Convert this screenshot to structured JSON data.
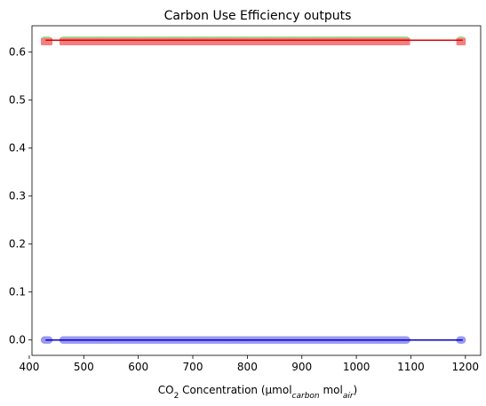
{
  "chart_data": {
    "type": "scatter",
    "title": "Carbon Use Efficiency outputs",
    "xlabel": {
      "parts": [
        "CO",
        "2",
        " Concentration (µmol",
        "carbon",
        " mol",
        "air",
        ")"
      ]
    },
    "ylabel": "",
    "xlim": [
      405,
      1228
    ],
    "ylim": [
      -0.032,
      0.655
    ],
    "x_ticks": [
      400,
      500,
      600,
      700,
      800,
      900,
      1000,
      1100,
      1200
    ],
    "x_tick_labels": [
      "400",
      "500",
      "600",
      "700",
      "800",
      "900",
      "1000",
      "1100",
      "1200"
    ],
    "y_ticks": [
      0.0,
      0.1,
      0.2,
      0.3,
      0.4,
      0.5,
      0.6
    ],
    "y_tick_labels": [
      "0.0",
      "0.1",
      "0.2",
      "0.3",
      "0.4",
      "0.5",
      "0.6"
    ],
    "grid": false,
    "series": [
      {
        "color": "#90ee90",
        "marker": "circle",
        "y": 0.625,
        "x_ranges": [
          [
            428,
            436
          ],
          [
            462,
            1093
          ],
          [
            1190,
            1195
          ]
        ]
      },
      {
        "color": "#f28080",
        "marker": "square",
        "y": 0.622,
        "x_ranges": [
          [
            428,
            436
          ],
          [
            462,
            1093
          ],
          [
            1190,
            1195
          ]
        ]
      },
      {
        "color": "#9999ee",
        "marker": "circle",
        "y": 0.0,
        "x_ranges": [
          [
            428,
            436
          ],
          [
            462,
            1093
          ],
          [
            1190,
            1195
          ]
        ]
      }
    ],
    "lines": [
      {
        "color": "#e00000",
        "y": 0.625,
        "x": [
          430,
          1195
        ]
      },
      {
        "color": "#0000cc",
        "y": 0.0,
        "x": [
          430,
          1195
        ]
      }
    ]
  }
}
